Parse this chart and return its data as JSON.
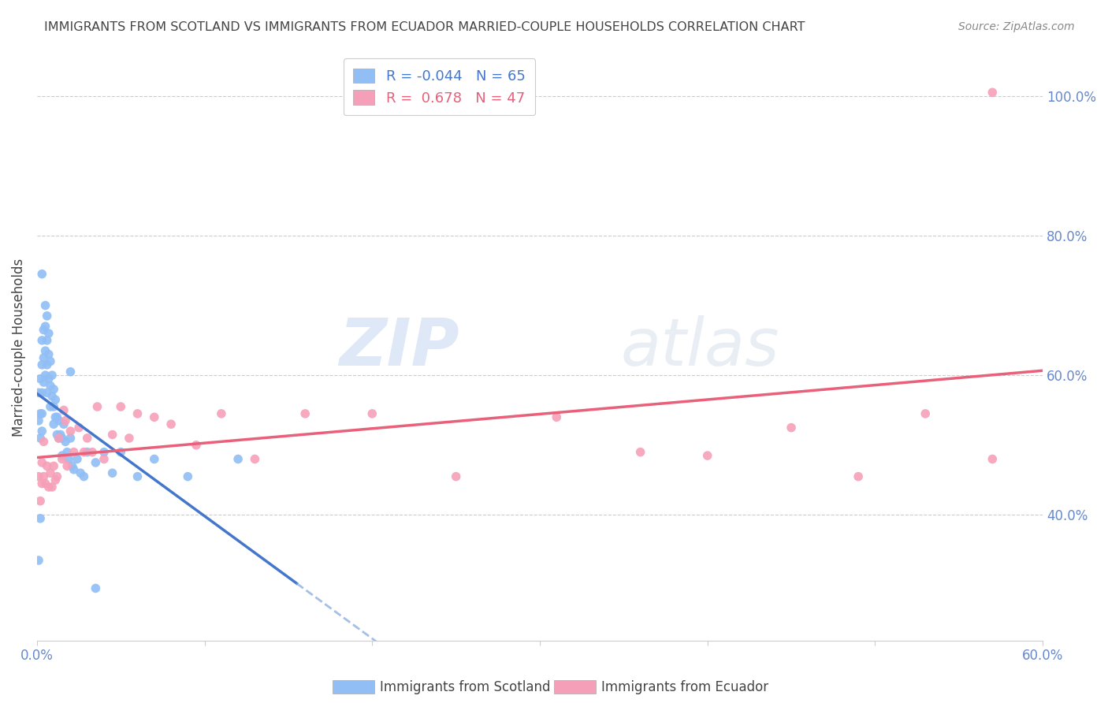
{
  "title": "IMMIGRANTS FROM SCOTLAND VS IMMIGRANTS FROM ECUADOR MARRIED-COUPLE HOUSEHOLDS CORRELATION CHART",
  "source": "Source: ZipAtlas.com",
  "ylabel": "Married-couple Households",
  "xlim": [
    0.0,
    0.6
  ],
  "ylim": [
    0.22,
    1.06
  ],
  "yticks_right": [
    0.4,
    0.6,
    0.8,
    1.0
  ],
  "ytick_labels_right": [
    "40.0%",
    "60.0%",
    "80.0%",
    "100.0%"
  ],
  "scotland_color": "#90bef5",
  "ecuador_color": "#f5a0b8",
  "scotland_R": -0.044,
  "scotland_N": 65,
  "ecuador_R": 0.678,
  "ecuador_N": 47,
  "watermark": "ZIPatlas",
  "background_color": "#ffffff",
  "grid_color": "#cccccc",
  "title_color": "#444444",
  "axis_color": "#6688cc",
  "scotland_line_color": "#4477cc",
  "scotland_dash_color": "#88aadd",
  "ecuador_line_color": "#e8607a",
  "scotland_x": [
    0.001,
    0.001,
    0.002,
    0.002,
    0.002,
    0.003,
    0.003,
    0.003,
    0.003,
    0.003,
    0.004,
    0.004,
    0.004,
    0.005,
    0.005,
    0.005,
    0.005,
    0.006,
    0.006,
    0.006,
    0.006,
    0.007,
    0.007,
    0.007,
    0.008,
    0.008,
    0.008,
    0.009,
    0.009,
    0.01,
    0.01,
    0.01,
    0.011,
    0.011,
    0.012,
    0.012,
    0.013,
    0.013,
    0.014,
    0.015,
    0.015,
    0.016,
    0.017,
    0.018,
    0.019,
    0.02,
    0.021,
    0.022,
    0.024,
    0.026,
    0.028,
    0.03,
    0.035,
    0.04,
    0.045,
    0.05,
    0.06,
    0.07,
    0.09,
    0.12,
    0.001,
    0.002,
    0.003,
    0.02,
    0.035
  ],
  "scotland_y": [
    0.575,
    0.535,
    0.595,
    0.545,
    0.51,
    0.65,
    0.615,
    0.575,
    0.545,
    0.52,
    0.665,
    0.625,
    0.59,
    0.7,
    0.67,
    0.635,
    0.6,
    0.685,
    0.65,
    0.615,
    0.575,
    0.66,
    0.63,
    0.595,
    0.62,
    0.585,
    0.555,
    0.6,
    0.57,
    0.58,
    0.555,
    0.53,
    0.565,
    0.54,
    0.54,
    0.515,
    0.535,
    0.51,
    0.515,
    0.51,
    0.485,
    0.53,
    0.505,
    0.49,
    0.48,
    0.51,
    0.47,
    0.465,
    0.48,
    0.46,
    0.455,
    0.49,
    0.475,
    0.49,
    0.46,
    0.49,
    0.455,
    0.48,
    0.455,
    0.48,
    0.335,
    0.395,
    0.745,
    0.605,
    0.295
  ],
  "ecuador_x": [
    0.001,
    0.002,
    0.003,
    0.003,
    0.004,
    0.004,
    0.005,
    0.006,
    0.007,
    0.008,
    0.009,
    0.01,
    0.011,
    0.012,
    0.013,
    0.015,
    0.016,
    0.017,
    0.018,
    0.02,
    0.022,
    0.025,
    0.028,
    0.03,
    0.033,
    0.036,
    0.04,
    0.045,
    0.05,
    0.055,
    0.06,
    0.07,
    0.08,
    0.095,
    0.11,
    0.13,
    0.16,
    0.2,
    0.25,
    0.31,
    0.36,
    0.4,
    0.45,
    0.49,
    0.53,
    0.57,
    0.57
  ],
  "ecuador_y": [
    0.455,
    0.42,
    0.445,
    0.475,
    0.455,
    0.505,
    0.445,
    0.47,
    0.44,
    0.46,
    0.44,
    0.47,
    0.45,
    0.455,
    0.51,
    0.48,
    0.55,
    0.535,
    0.47,
    0.52,
    0.49,
    0.525,
    0.49,
    0.51,
    0.49,
    0.555,
    0.48,
    0.515,
    0.555,
    0.51,
    0.545,
    0.54,
    0.53,
    0.5,
    0.545,
    0.48,
    0.545,
    0.545,
    0.455,
    0.54,
    0.49,
    0.485,
    0.525,
    0.455,
    0.545,
    0.48,
    1.005
  ]
}
